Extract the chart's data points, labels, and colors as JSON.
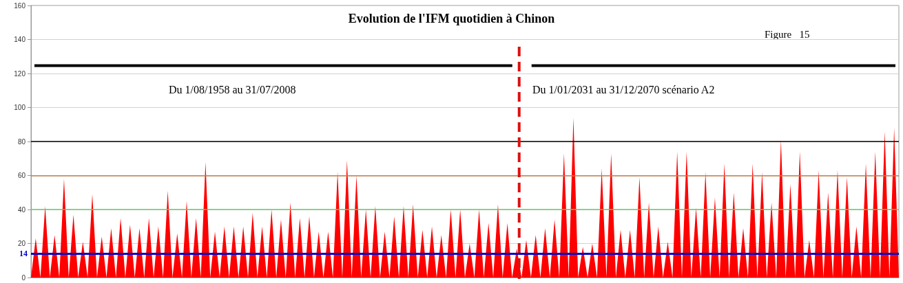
{
  "chart_data": {
    "type": "area",
    "title": "Evolution de l'IFM quotidien à Chinon",
    "annotations": [
      "Figure   15",
      "Du 1/08/1958 au 31/07/2008",
      "Du 1/01/2031 au 31/12/2070 scénario A2"
    ],
    "categories": [
      null,
      null,
      null,
      null,
      null,
      null,
      null,
      null,
      null,
      null,
      null,
      null,
      null,
      null,
      null,
      null,
      null,
      null,
      null,
      null,
      null,
      null,
      null,
      null,
      null,
      null,
      null,
      null,
      null,
      null,
      null,
      null,
      null,
      null,
      null,
      null,
      null,
      null,
      null,
      null,
      null,
      null,
      null,
      null,
      null,
      null,
      null,
      null,
      null,
      null,
      null,
      null,
      null,
      null,
      null,
      null,
      null,
      null,
      null,
      null,
      null,
      null,
      null,
      null,
      null,
      null,
      null,
      null,
      null,
      null,
      null,
      null,
      null,
      null,
      null,
      null,
      null,
      null,
      null,
      null,
      null,
      null,
      null,
      null,
      null,
      null,
      null,
      null,
      null,
      null,
      null,
      null,
      null,
      null,
      null,
      null,
      null,
      null,
      null,
      null,
      null,
      null,
      null,
      null,
      null,
      null,
      null,
      null,
      null,
      null,
      null,
      null,
      null,
      null,
      null,
      null,
      null,
      null,
      null,
      null,
      null,
      null,
      null,
      null,
      null,
      null,
      null,
      null,
      null,
      null,
      null,
      null,
      null,
      null,
      null,
      null,
      null,
      null,
      null,
      null,
      null,
      null,
      null,
      null,
      null,
      null,
      null,
      null,
      null,
      null,
      null,
      null,
      null,
      null,
      null,
      null,
      null,
      null,
      null,
      null,
      null,
      null,
      null,
      null,
      null,
      null,
      null,
      null,
      null,
      null,
      null,
      null,
      null,
      null,
      null,
      null,
      null,
      null,
      null,
      null,
      null,
      null,
      null,
      null,
      null
    ],
    "values": [
      0,
      23,
      0,
      42,
      0,
      25,
      0,
      58,
      0,
      37,
      0,
      21,
      0,
      49,
      0,
      24,
      0,
      29,
      0,
      35,
      0,
      31,
      0,
      29,
      0,
      35,
      0,
      30,
      0,
      51,
      0,
      26,
      0,
      45,
      0,
      35,
      0,
      68,
      0,
      27,
      0,
      30,
      0,
      30,
      0,
      30,
      0,
      38,
      0,
      30,
      0,
      40,
      0,
      34,
      0,
      44,
      0,
      35,
      0,
      36,
      0,
      27,
      0,
      27,
      0,
      62,
      0,
      69,
      0,
      60,
      0,
      40,
      0,
      42,
      0,
      27,
      0,
      36,
      0,
      42,
      0,
      43,
      0,
      28,
      0,
      30,
      0,
      25,
      0,
      40,
      0,
      40,
      0,
      20,
      0,
      40,
      0,
      32,
      0,
      43,
      0,
      32,
      0,
      17,
      0,
      22,
      0,
      25,
      0,
      29,
      0,
      34,
      0,
      73,
      0,
      94,
      0,
      18,
      0,
      20,
      0,
      64,
      0,
      73,
      0,
      28,
      0,
      28,
      0,
      59,
      0,
      44,
      0,
      30,
      0,
      21,
      0,
      74,
      0,
      74,
      0,
      41,
      0,
      62,
      0,
      47,
      0,
      67,
      0,
      50,
      0,
      29,
      0,
      67,
      0,
      62,
      0,
      44,
      0,
      81,
      0,
      55,
      0,
      74,
      0,
      22,
      0,
      63,
      0,
      50,
      0,
      63,
      0,
      59,
      0,
      30,
      0,
      67,
      0,
      74,
      0,
      86,
      0,
      88,
      0
    ],
    "color": "#ff0000",
    "ylim": [
      0,
      160
    ],
    "yticks": [
      0,
      20,
      40,
      60,
      80,
      100,
      120,
      140,
      160
    ],
    "grid": true,
    "ref_lines": [
      {
        "axis": "y",
        "value": 80,
        "color": "#000000"
      },
      {
        "axis": "y",
        "value": 60,
        "color": "#c08050"
      },
      {
        "axis": "y",
        "value": 40,
        "color": "#66cc66"
      },
      {
        "axis": "y",
        "value": 14,
        "label": "14",
        "color": "#0000cc"
      }
    ]
  }
}
